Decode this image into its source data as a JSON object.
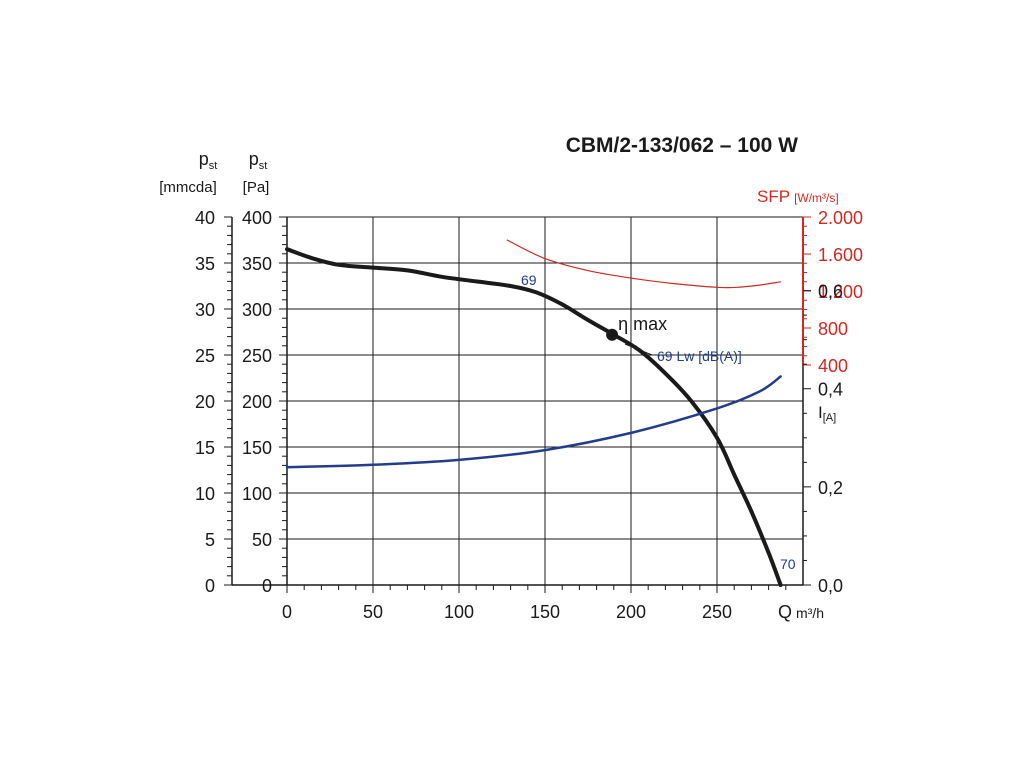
{
  "chart_data": {
    "type": "line",
    "title": "CBM/2-133/062 – 100 W",
    "x_axis": {
      "label": "Q",
      "unit": "m³/h",
      "range": [
        0,
        300
      ],
      "ticks": [
        0,
        50,
        100,
        150,
        200,
        250
      ],
      "tick_labels": [
        "0",
        "50",
        "100",
        "150",
        "200",
        "250"
      ]
    },
    "y_axis_pa": {
      "symbol": "p",
      "subscript": "st",
      "unit": "[Pa]",
      "range": [
        0,
        400
      ],
      "ticks": [
        0,
        50,
        100,
        150,
        200,
        250,
        300,
        350,
        400
      ],
      "tick_labels": [
        "0",
        "50",
        "100",
        "150",
        "200",
        "250",
        "300",
        "350",
        "400"
      ]
    },
    "y_axis_mmcda": {
      "symbol": "p",
      "subscript": "st",
      "unit": "[mmcda]",
      "range": [
        0,
        40
      ],
      "ticks": [
        0,
        5,
        10,
        15,
        20,
        25,
        30,
        35,
        40
      ],
      "tick_labels": [
        "0",
        "5",
        "10",
        "15",
        "20",
        "25",
        "30",
        "35",
        "40"
      ]
    },
    "y_axis_sfp": {
      "label": "SFP",
      "unit": "[W/m³/s]",
      "color": "#cc2a22",
      "ticks": [
        400,
        800,
        1200,
        1600,
        2000
      ],
      "tick_labels": [
        "400",
        "800",
        "1.200",
        "1.600",
        "2.000"
      ]
    },
    "y_axis_current": {
      "label": "I",
      "unit": "[A]",
      "range": [
        0,
        0.6
      ],
      "ticks": [
        0,
        0.2,
        0.4,
        0.6
      ],
      "tick_labels": [
        "0,0",
        "0,2",
        "0,4",
        "0,6"
      ]
    },
    "series": [
      {
        "name": "pressure",
        "axis": "pa",
        "color": "#1a1a1a",
        "points": [
          [
            0,
            365
          ],
          [
            15,
            355
          ],
          [
            30,
            348
          ],
          [
            50,
            345
          ],
          [
            70,
            342
          ],
          [
            90,
            335
          ],
          [
            110,
            330
          ],
          [
            130,
            325
          ],
          [
            145,
            318
          ],
          [
            160,
            305
          ],
          [
            175,
            288
          ],
          [
            190,
            272
          ],
          [
            205,
            255
          ],
          [
            220,
            230
          ],
          [
            235,
            200
          ],
          [
            250,
            160
          ],
          [
            260,
            120
          ],
          [
            270,
            80
          ],
          [
            280,
            35
          ],
          [
            287,
            0
          ]
        ]
      },
      {
        "name": "current",
        "axis": "current",
        "color": "#233d8c",
        "points": [
          [
            0,
            0.24
          ],
          [
            50,
            0.245
          ],
          [
            100,
            0.255
          ],
          [
            150,
            0.275
          ],
          [
            200,
            0.31
          ],
          [
            250,
            0.36
          ],
          [
            275,
            0.395
          ],
          [
            287,
            0.425
          ]
        ]
      },
      {
        "name": "SFP",
        "axis": "sfp",
        "color": "#cc2a22",
        "points": [
          [
            128,
            1750
          ],
          [
            150,
            1550
          ],
          [
            175,
            1420
          ],
          [
            200,
            1340
          ],
          [
            225,
            1280
          ],
          [
            250,
            1240
          ],
          [
            262,
            1240
          ],
          [
            275,
            1265
          ],
          [
            287,
            1300
          ]
        ]
      }
    ],
    "annotations": {
      "eta_max": {
        "label": "η max",
        "x": 189,
        "y": 272
      },
      "label_69_upper": "69",
      "label_69_lw": "69 Lw [dB(A)]",
      "label_70": "70"
    },
    "grid": true
  }
}
